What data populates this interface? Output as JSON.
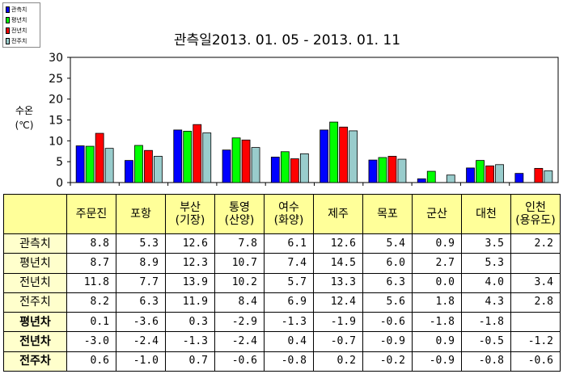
{
  "chart_data": {
    "type": "bar",
    "title": "관측일2013. 01. 05 -  2013. 01. 11",
    "ylabel": "수온 (℃)",
    "ylim": [
      0,
      30
    ],
    "yticks": [
      0,
      5,
      10,
      15,
      20,
      25,
      30
    ],
    "grid": false,
    "legend_position": "top-left",
    "categories": [
      "주문진",
      "포항",
      "부산(기장)",
      "통영(산양)",
      "여수(화양)",
      "제주",
      "목포",
      "군산",
      "대천",
      "인천(용유도)"
    ],
    "series": [
      {
        "name": "관측치",
        "color": "#0000ff",
        "values": [
          8.8,
          5.3,
          12.6,
          7.8,
          6.1,
          12.6,
          5.4,
          0.9,
          3.5,
          2.2
        ]
      },
      {
        "name": "평년치",
        "color": "#00ff00",
        "values": [
          8.7,
          8.9,
          12.3,
          10.7,
          7.4,
          14.5,
          6.0,
          2.7,
          5.3,
          null
        ]
      },
      {
        "name": "전년치",
        "color": "#ff0000",
        "values": [
          11.8,
          7.7,
          13.9,
          10.2,
          5.7,
          13.3,
          6.3,
          0.0,
          4.0,
          3.4
        ]
      },
      {
        "name": "전주치",
        "color": "#99cccc",
        "values": [
          8.2,
          6.3,
          11.9,
          8.4,
          6.9,
          12.4,
          5.6,
          1.8,
          4.3,
          2.8
        ]
      }
    ]
  },
  "table": {
    "columns": [
      {
        "line1": "주문진",
        "line2": ""
      },
      {
        "line1": "포항",
        "line2": ""
      },
      {
        "line1": "부산",
        "line2": "(기장)"
      },
      {
        "line1": "통영",
        "line2": "(산양)"
      },
      {
        "line1": "여수",
        "line2": "(화양)"
      },
      {
        "line1": "제주",
        "line2": ""
      },
      {
        "line1": "목포",
        "line2": ""
      },
      {
        "line1": "군산",
        "line2": ""
      },
      {
        "line1": "대천",
        "line2": ""
      },
      {
        "line1": "인천",
        "line2": "(용유도)"
      }
    ],
    "rows": [
      {
        "label": "관측치",
        "diff": false,
        "cells": [
          "8.8",
          "5.3",
          "12.6",
          "7.8",
          "6.1",
          "12.6",
          "5.4",
          "0.9",
          "3.5",
          "2.2"
        ]
      },
      {
        "label": "평년치",
        "diff": false,
        "cells": [
          "8.7",
          "8.9",
          "12.3",
          "10.7",
          "7.4",
          "14.5",
          "6.0",
          "2.7",
          "5.3",
          ""
        ]
      },
      {
        "label": "전년치",
        "diff": false,
        "cells": [
          "11.8",
          "7.7",
          "13.9",
          "10.2",
          "5.7",
          "13.3",
          "6.3",
          "0.0",
          "4.0",
          "3.4"
        ]
      },
      {
        "label": "전주치",
        "diff": false,
        "cells": [
          "8.2",
          "6.3",
          "11.9",
          "8.4",
          "6.9",
          "12.4",
          "5.6",
          "1.8",
          "4.3",
          "2.8"
        ]
      },
      {
        "label": "평년차",
        "diff": true,
        "cells": [
          "0.1",
          "-3.6",
          "0.3",
          "-2.9",
          "-1.3",
          "-1.9",
          "-0.6",
          "-1.8",
          "-1.8",
          ""
        ]
      },
      {
        "label": "전년차",
        "diff": true,
        "cells": [
          "-3.0",
          "-2.4",
          "-1.3",
          "-2.4",
          "0.4",
          "-0.7",
          "-0.9",
          "0.9",
          "-0.5",
          "-1.2"
        ]
      },
      {
        "label": "전주차",
        "diff": true,
        "cells": [
          "0.6",
          "-1.0",
          "0.7",
          "-0.6",
          "-0.8",
          "0.2",
          "-0.2",
          "-0.9",
          "-0.8",
          "-0.6"
        ]
      }
    ]
  }
}
